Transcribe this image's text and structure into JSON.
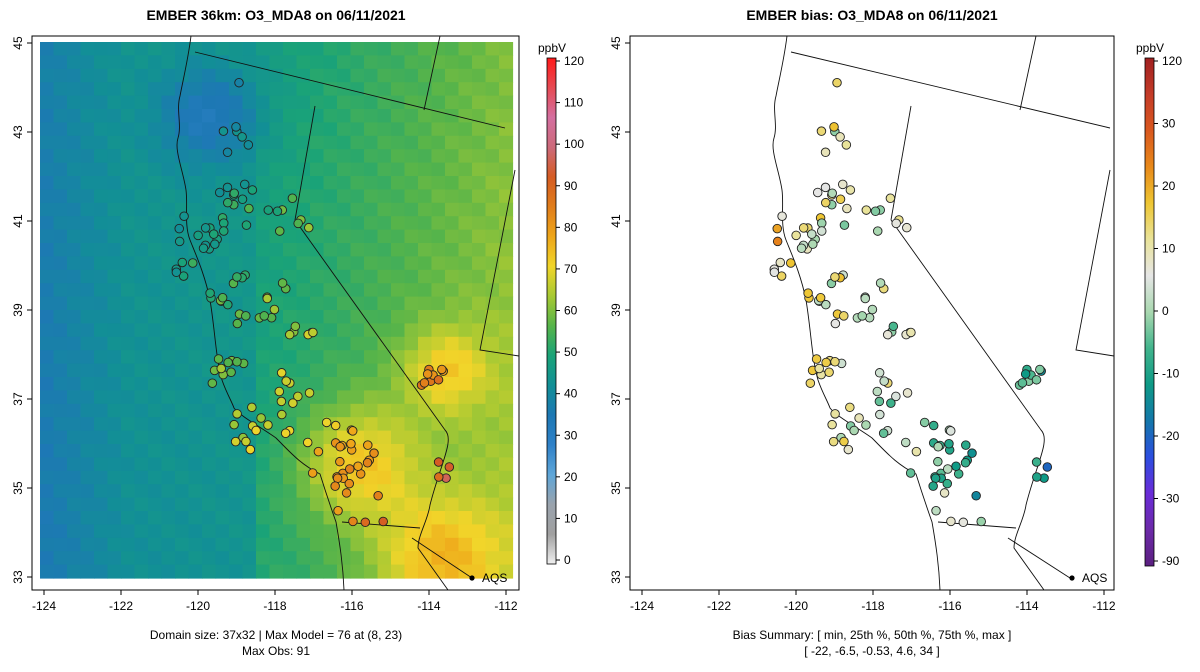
{
  "left_panel": {
    "title": "EMBER 36km: O3_MDA8 on 06/11/2021",
    "x_ticks": [
      "-124",
      "-122",
      "-120",
      "-118",
      "-116",
      "-114",
      "-112"
    ],
    "y_ticks": [
      "45",
      "43",
      "41",
      "39",
      "37",
      "35",
      "33"
    ],
    "footer_line1": "Domain size: 37x32 | Max Model = 76 at (8, 23)",
    "footer_line2": "Max Obs: 91",
    "marker_label": "AQS"
  },
  "left_colorbar": {
    "unit": "ppbV",
    "tick_labels": [
      "0",
      "10",
      "20",
      "30",
      "40",
      "50",
      "60",
      "70",
      "80",
      "90",
      "100",
      "110",
      "120"
    ],
    "colors": [
      "#f0f0f0",
      "#a0a0a0",
      "#9aa3ad",
      "#5ea6d8",
      "#2f81c8",
      "#1d78b4",
      "#128f96",
      "#1aa378",
      "#56b44a",
      "#a7c933",
      "#f1d52a",
      "#eea61a",
      "#e07d1b",
      "#d55c23",
      "#cc6a7a",
      "#d46fa0",
      "#e64a53",
      "#ff1a1a"
    ]
  },
  "right_panel": {
    "title": "EMBER bias: O3_MDA8 on 06/11/2021",
    "x_ticks": [
      "-124",
      "-122",
      "-120",
      "-118",
      "-116",
      "-114",
      "-112"
    ],
    "y_ticks": [
      "45",
      "43",
      "41",
      "39",
      "37",
      "35",
      "33"
    ],
    "footer_line1": "Bias Summary: [ min, 25th %, 50th %, 75th %, max ]",
    "footer_line2": "[ -22,   -6.5,   -0.53,   4.6,   34 ]",
    "marker_label": "AQS"
  },
  "right_colorbar": {
    "unit": "ppbV",
    "tick_labels": [
      "120",
      "30",
      "20",
      "10",
      "0",
      "-10",
      "-20",
      "-30",
      "-90"
    ],
    "colors": [
      "#a02020",
      "#c43b28",
      "#d9581f",
      "#e8891a",
      "#eec633",
      "#e9e39a",
      "#e6e6e6",
      "#a9d8b0",
      "#42b48c",
      "#0e9a86",
      "#1477aa",
      "#2c4ee0",
      "#6a2cd8",
      "#6c2aa8",
      "#5b1f80"
    ]
  },
  "bias_summary": {
    "min": -22,
    "p25": -6.5,
    "p50": -0.53,
    "p75": 4.6,
    "max": 34
  },
  "model_summary": {
    "domain": "37x32",
    "max_model": 76,
    "max_model_cell": [
      8,
      23
    ],
    "max_obs": 91
  }
}
